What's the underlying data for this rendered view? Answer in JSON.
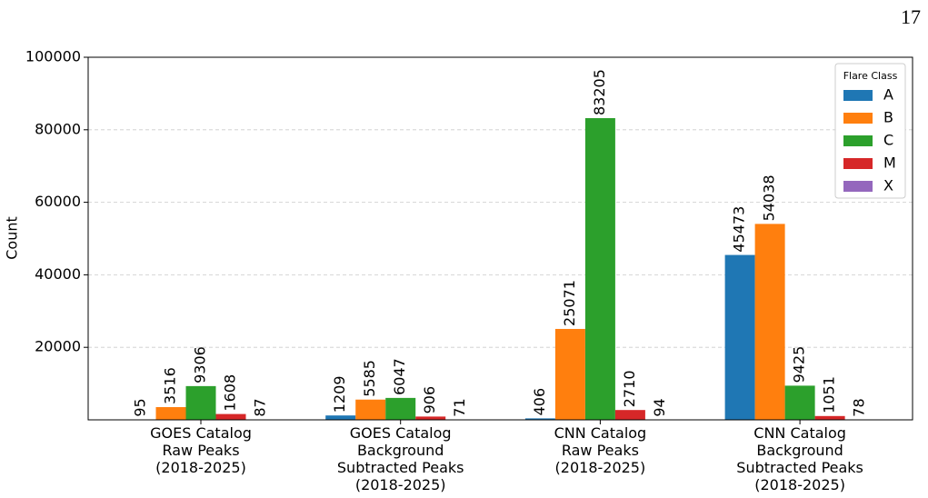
{
  "page_number": "17",
  "chart_data": {
    "type": "bar",
    "ylabel": "Count",
    "categories": [
      "GOES Catalog\nRaw Peaks\n(2018-2025)",
      "GOES Catalog\nBackground\nSubtracted Peaks\n(2018-2025)",
      "CNN Catalog\nRaw Peaks\n(2018-2025)",
      "CNN Catalog\nBackground\nSubtracted Peaks\n(2018-2025)"
    ],
    "series": [
      {
        "name": "A",
        "color": "#1f77b4",
        "values": [
          95,
          1209,
          406,
          45473
        ]
      },
      {
        "name": "B",
        "color": "#ff7f0e",
        "values": [
          3516,
          5585,
          25071,
          54038
        ]
      },
      {
        "name": "C",
        "color": "#2ca02c",
        "values": [
          9306,
          6047,
          83205,
          9425
        ]
      },
      {
        "name": "M",
        "color": "#d62728",
        "values": [
          1608,
          906,
          2710,
          1051
        ]
      },
      {
        "name": "X",
        "color": "#9467bd",
        "values": [
          87,
          71,
          94,
          78
        ]
      }
    ],
    "legend_title": "Flare Class",
    "legend": "upper right",
    "ylim": [
      0,
      100000
    ],
    "yticks": [
      20000,
      40000,
      60000,
      80000,
      100000
    ],
    "grid": true
  }
}
